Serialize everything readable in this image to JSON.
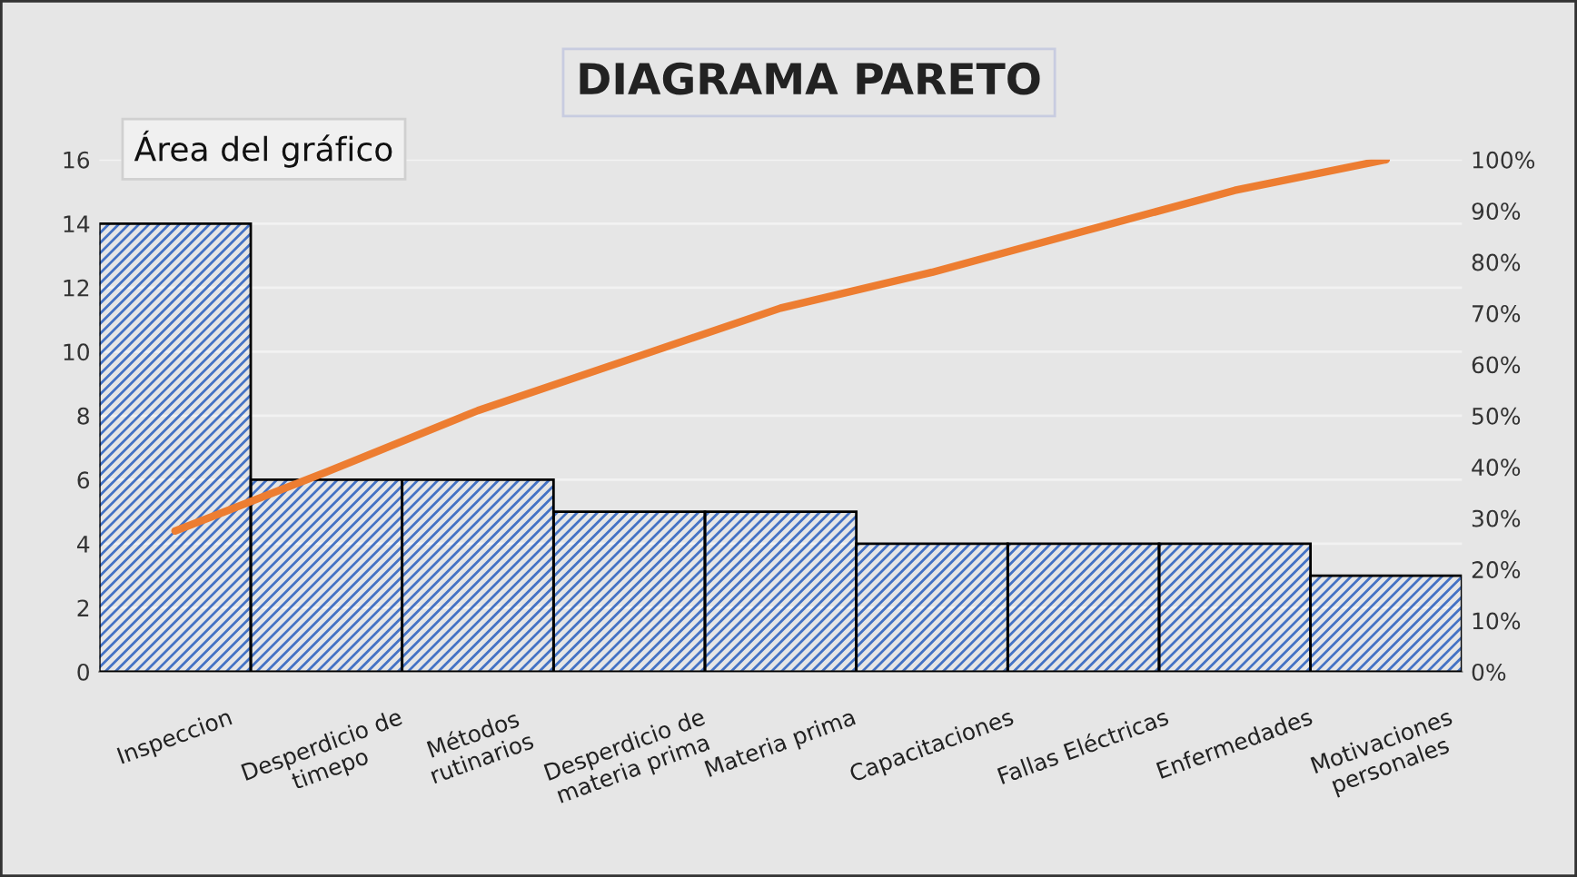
{
  "chart_data": {
    "type": "bar",
    "title": "DIAGRAMA PARETO",
    "categories": [
      "Inspeccion",
      "Desperdicio de\ntimepo",
      "Métodos\nrutinarios",
      "Desperdicio de\nmateria prima",
      "Materia prima",
      "Capacitaciones",
      "Fallas Eléctricas",
      "Enfermedades",
      "Motivaciones\npersonales"
    ],
    "series": [
      {
        "color": "#4472c4",
        "values": [
          14,
          6,
          6,
          5,
          5,
          4,
          4,
          4,
          3
        ]
      },
      {
        "type": "line",
        "axis": "y2",
        "color": "#ed7d31",
        "values": [
          27.5,
          39,
          51,
          61,
          71,
          78,
          86,
          94,
          100
        ]
      }
    ],
    "ylim": [
      0,
      16
    ],
    "yticks": [
      0,
      2,
      4,
      6,
      8,
      10,
      12,
      14,
      16
    ],
    "y2lim": [
      0,
      100
    ],
    "y2ticks": [
      {
        "value": 0,
        "label": "0%"
      },
      {
        "value": 10,
        "label": "10%"
      },
      {
        "value": 20,
        "label": "20%"
      },
      {
        "value": 30,
        "label": "30%"
      },
      {
        "value": 40,
        "label": "40%"
      },
      {
        "value": 50,
        "label": "50%"
      },
      {
        "value": 60,
        "label": "60%"
      },
      {
        "value": 70,
        "label": "70%"
      },
      {
        "value": 80,
        "label": "80%"
      },
      {
        "value": 90,
        "label": "90%"
      },
      {
        "value": 100,
        "label": "100%"
      }
    ],
    "grid": "y",
    "legend": false,
    "annotations": [
      "Área del gráfico"
    ]
  }
}
